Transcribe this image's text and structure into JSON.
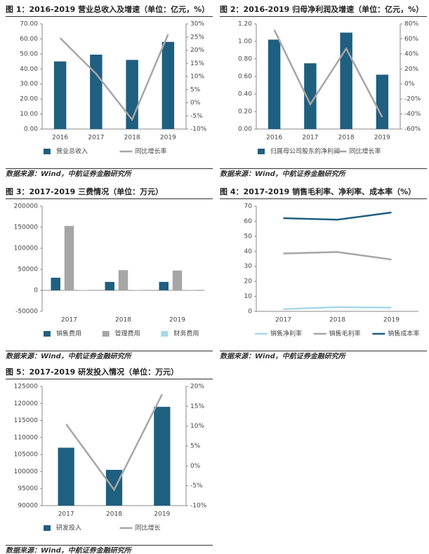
{
  "chart_data": [
    {
      "type": "bar",
      "title": "图 1：2016-2019 营业总收入及增速（单位：亿元，%）",
      "source": "数据来源：Wind，中航证券金融研究所",
      "categories": [
        "2016",
        "2017",
        "2018",
        "2019"
      ],
      "series": [
        {
          "name": "营业总收入",
          "color": "#1f5f7f",
          "values": [
            45,
            49.5,
            46,
            58
          ]
        },
        {
          "name": "同比增长率",
          "color": "#a6a6a6",
          "type": "line",
          "axis": "y2",
          "values": [
            24.6,
            11,
            -6.4,
            26
          ]
        }
      ],
      "ylim": [
        0,
        70
      ],
      "yticks": [
        {
          "value": 0,
          "label": "0.00"
        },
        {
          "value": 10,
          "label": "10.00"
        },
        {
          "value": 20,
          "label": "20.00"
        },
        {
          "value": 30,
          "label": "30.00"
        },
        {
          "value": 40,
          "label": "40.00"
        },
        {
          "value": 50,
          "label": "50.00"
        },
        {
          "value": 60,
          "label": "60.00"
        },
        {
          "value": 70,
          "label": "70.00"
        }
      ],
      "y2lim": [
        -10,
        30
      ],
      "y2ticks": [
        {
          "value": -10,
          "label": "-10%"
        },
        {
          "value": -5,
          "label": "-5%"
        },
        {
          "value": 0,
          "label": "0%"
        },
        {
          "value": 5,
          "label": "5%"
        },
        {
          "value": 10,
          "label": "10%"
        },
        {
          "value": 15,
          "label": "15%"
        },
        {
          "value": 20,
          "label": "20%"
        },
        {
          "value": 25,
          "label": "25%"
        },
        {
          "value": 30,
          "label": "30%"
        }
      ]
    },
    {
      "type": "bar",
      "title": "图 2：2016-2019 归母净利润及增速（单位：亿元，%）",
      "source": "数据来源：Wind，中航证券金融研究所",
      "categories": [
        "2016",
        "2017",
        "2018",
        "2019"
      ],
      "series": [
        {
          "name": "归属母公司股东的净利润",
          "color": "#1f5f7f",
          "values": [
            1.02,
            0.75,
            1.1,
            0.62
          ]
        },
        {
          "name": "同比增长率",
          "color": "#a6a6a6",
          "type": "line",
          "axis": "y2",
          "values": [
            72,
            -27,
            47,
            -44
          ]
        }
      ],
      "ylim": [
        0,
        1.2
      ],
      "yticks": [
        {
          "value": 0,
          "label": "0.00"
        },
        {
          "value": 0.2,
          "label": "0.20"
        },
        {
          "value": 0.4,
          "label": "0.40"
        },
        {
          "value": 0.6,
          "label": "0.60"
        },
        {
          "value": 0.8,
          "label": "0.80"
        },
        {
          "value": 1,
          "label": "1.00"
        },
        {
          "value": 1.2,
          "label": "1.20"
        }
      ],
      "y2lim": [
        -60,
        80
      ],
      "y2ticks": [
        {
          "value": -60,
          "label": "-60%"
        },
        {
          "value": -40,
          "label": "-40%"
        },
        {
          "value": -20,
          "label": "-20%"
        },
        {
          "value": 0,
          "label": "0%"
        },
        {
          "value": 20,
          "label": "20%"
        },
        {
          "value": 40,
          "label": "40%"
        },
        {
          "value": 60,
          "label": "60%"
        },
        {
          "value": 80,
          "label": "80%"
        }
      ]
    },
    {
      "type": "bar",
      "title": "图 3：2017-2019 三费情况（单位：万元）",
      "source": "数据来源：Wind，中航证券金融研究所",
      "categories": [
        "2017",
        "2018",
        "2019"
      ],
      "series": [
        {
          "name": "销售费用",
          "color": "#1f5f7f",
          "values": [
            30000,
            20000,
            20000
          ]
        },
        {
          "name": "管理费用",
          "color": "#a6a6a6",
          "values": [
            153000,
            48000,
            47000
          ]
        },
        {
          "name": "财务费用",
          "color": "#a8d8ea",
          "values": [
            1000,
            500,
            500
          ]
        }
      ],
      "ylim": [
        -50000,
        200000
      ],
      "yticks": [
        -50000,
        0,
        50000,
        100000,
        150000,
        200000
      ]
    },
    {
      "type": "line",
      "title": "图 4：2017-2019 销售毛利率、净利率、成本率（%）",
      "source": "数据来源：Wind，中航证券金融研究所",
      "categories": [
        "2017",
        "2018",
        "2019"
      ],
      "series": [
        {
          "name": "销售净利率",
          "color": "#a8d8ea",
          "values": [
            1.5,
            2.8,
            2.5
          ]
        },
        {
          "name": "销售毛利率",
          "color": "#a6a6a6",
          "values": [
            38.5,
            39.5,
            34.5
          ]
        },
        {
          "name": "销售成本率",
          "color": "#1f5f7f",
          "values": [
            62,
            61,
            65.8
          ]
        }
      ],
      "ylim": [
        0,
        70
      ],
      "yticks": [
        0,
        10,
        20,
        30,
        40,
        50,
        60,
        70
      ]
    },
    {
      "type": "bar",
      "title": "图 5：2017-2019 研发投入情况（单位：万元）",
      "source": "数据来源：Wind，中航证券金融研究所",
      "categories": [
        "2017",
        "2018",
        "2019"
      ],
      "series": [
        {
          "name": "研发投入",
          "color": "#1f5f7f",
          "values": [
            107000,
            100500,
            119000
          ]
        },
        {
          "name": "同比增长",
          "color": "#a6a6a6",
          "type": "line",
          "axis": "y2",
          "values": [
            10.5,
            -6,
            18
          ]
        }
      ],
      "ylim": [
        90000,
        125000
      ],
      "yticks": [
        90000,
        95000,
        100000,
        105000,
        110000,
        115000,
        120000,
        125000
      ],
      "y2lim": [
        -10,
        20
      ],
      "y2ticks": [
        {
          "value": -10,
          "label": "-10%"
        },
        {
          "value": -5,
          "label": "-5%"
        },
        {
          "value": 0,
          "label": "0%"
        },
        {
          "value": 5,
          "label": "5%"
        },
        {
          "value": 10,
          "label": "10%"
        },
        {
          "value": 15,
          "label": "15%"
        },
        {
          "value": 20,
          "label": "20%"
        }
      ]
    }
  ]
}
